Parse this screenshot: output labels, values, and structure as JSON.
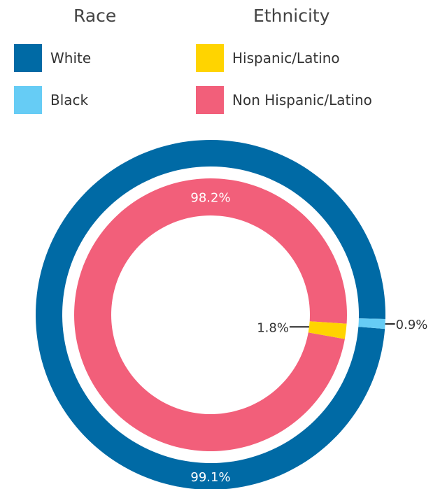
{
  "legend": {
    "race_title": "Race",
    "ethnicity_title": "Ethnicity",
    "race_items": [
      {
        "label": "White",
        "color": "#006aa5"
      },
      {
        "label": "Black",
        "color": "#66ccf5"
      }
    ],
    "ethnicity_items": [
      {
        "label": "Hispanic/Latino",
        "color": "#ffd400"
      },
      {
        "label": "Non Hispanic/Latino",
        "color": "#f25f7a"
      }
    ]
  },
  "chart_data": [
    {
      "type": "pie",
      "ring": "outer",
      "legend_group": "Race",
      "categories": [
        "White",
        "Black"
      ],
      "values": [
        99.1,
        0.9
      ],
      "labels": [
        "99.1%",
        "0.9%"
      ],
      "colors": [
        "#006aa5",
        "#66ccf5"
      ]
    },
    {
      "type": "pie",
      "ring": "inner",
      "legend_group": "Ethnicity",
      "categories": [
        "Non Hispanic/Latino",
        "Hispanic/Latino"
      ],
      "values": [
        98.2,
        1.8
      ],
      "labels": [
        "98.2%",
        "1.8%"
      ],
      "colors": [
        "#f25f7a",
        "#ffd400"
      ]
    }
  ]
}
